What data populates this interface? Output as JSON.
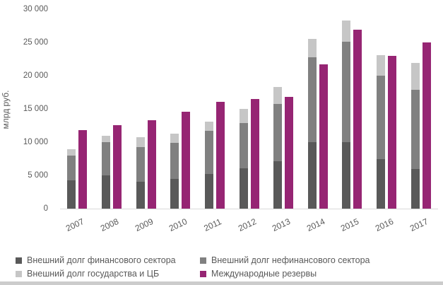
{
  "page": {
    "background": "#ffffff",
    "text_color": "#595959",
    "axis_line_color": "#d9d9d9",
    "bottom_strip_color": "#cccccc"
  },
  "chart_data": {
    "type": "bar",
    "title": "",
    "ylabel": "млрд руб.",
    "xlabel": "",
    "ylim": [
      0,
      30000
    ],
    "grid": false,
    "legend_position": "bottom",
    "yticks": [
      0,
      5000,
      10000,
      15000,
      20000,
      25000,
      30000
    ],
    "ytick_labels": [
      "0",
      "5 000",
      "10 000",
      "15 000",
      "20 000",
      "25 000",
      "30 000"
    ],
    "categories": [
      "2007",
      "2008",
      "2009",
      "2010",
      "2011",
      "2012",
      "2013",
      "2014",
      "2015",
      "2016",
      "2017"
    ],
    "stacked_series": [
      {
        "name": "Внешний долг финансового сектора",
        "color": "#595959",
        "values": [
          4250,
          5050,
          4000,
          4500,
          5250,
          6100,
          7150,
          9950,
          9950,
          7450,
          6000
        ]
      },
      {
        "name": "Внешний долг нефинансового сектора",
        "color": "#808080",
        "values": [
          3750,
          5000,
          5300,
          5400,
          6450,
          6750,
          8600,
          12850,
          15200,
          12600,
          11900
        ]
      },
      {
        "name": "Внешний долг государства и ЦБ",
        "color": "#c6c6c6",
        "values": [
          950,
          950,
          1450,
          1350,
          1350,
          2100,
          2550,
          2750,
          3100,
          3000,
          4000
        ]
      }
    ],
    "bar_series": [
      {
        "name": "Международные резервы",
        "color": "#962573",
        "values": [
          11850,
          12600,
          13300,
          14600,
          16050,
          16450,
          16800,
          21700,
          26950,
          23000,
          25000
        ]
      }
    ]
  }
}
